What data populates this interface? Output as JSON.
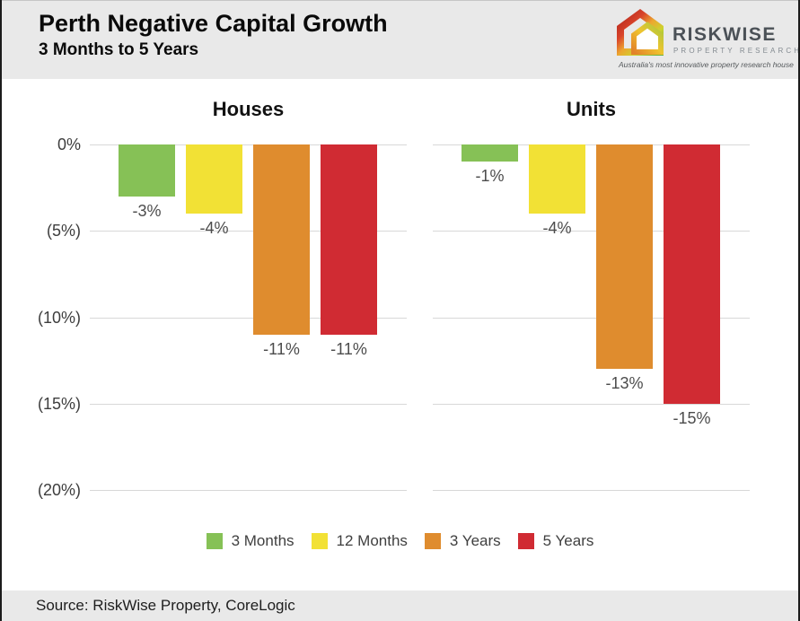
{
  "header": {
    "title": "Perth Negative Capital Growth",
    "subtitle": "3 Months to 5 Years"
  },
  "logo": {
    "brand": "RISKWISE",
    "brand_sub": "PROPERTY RESEARCH",
    "tagline": "Australia's most innovative property research house",
    "icon": "gradient-house-icon"
  },
  "chart_data": [
    {
      "type": "bar",
      "title": "Houses",
      "categories": [
        "3 Months",
        "12 Months",
        "3 Years",
        "5 Years"
      ],
      "values": [
        -3,
        -4,
        -11,
        -11
      ],
      "value_labels": [
        "-3%",
        "-4%",
        "-11%",
        "-11%"
      ],
      "bar_colors": [
        "#86c156",
        "#f2e135",
        "#df8c2e",
        "#d02b33"
      ],
      "xlabel": "",
      "ylabel": "",
      "ylim": [
        -20,
        0
      ],
      "yticks": [
        0,
        -5,
        -10,
        -15,
        -20
      ],
      "ytick_labels": [
        "0%",
        "(5%)",
        "(10%)",
        "(15%)",
        "(20%)"
      ],
      "grid": true,
      "legend_position": "bottom-center"
    },
    {
      "type": "bar",
      "title": "Units",
      "categories": [
        "3 Months",
        "12 Months",
        "3 Years",
        "5 Years"
      ],
      "values": [
        -1,
        -4,
        -13,
        -15
      ],
      "value_labels": [
        "-1%",
        "-4%",
        "-13%",
        "-15%"
      ],
      "bar_colors": [
        "#86c156",
        "#f2e135",
        "#df8c2e",
        "#d02b33"
      ],
      "xlabel": "",
      "ylabel": "",
      "ylim": [
        -20,
        0
      ],
      "yticks": [
        0,
        -5,
        -10,
        -15,
        -20
      ],
      "ytick_labels": [
        "0%",
        "(5%)",
        "(10%)",
        "(15%)",
        "(20%)"
      ],
      "grid": true,
      "legend_position": "bottom-center"
    }
  ],
  "legend": {
    "items": [
      {
        "label": "3 Months",
        "color": "#86c156"
      },
      {
        "label": "12 Months",
        "color": "#f2e135"
      },
      {
        "label": "3 Years",
        "color": "#df8c2e"
      },
      {
        "label": "5 Years",
        "color": "#d02b33"
      }
    ]
  },
  "footer": {
    "source": "Source: RiskWise Property, CoreLogic"
  },
  "colors": {
    "header_bg": "#e9e9e9",
    "footer_bg": "#e9e9e9",
    "gridline": "#d8d8d8",
    "tick_text": "#3d3d3d",
    "bar_label_text": "#4c4c4c",
    "brand_text": "#4b5157"
  }
}
